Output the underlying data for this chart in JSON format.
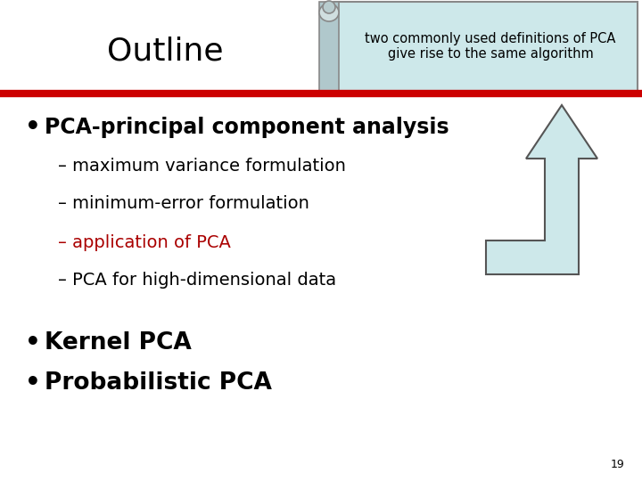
{
  "bg_color": "#ffffff",
  "title_text": "Outline",
  "title_color": "#000000",
  "title_fontsize": 26,
  "header_box_text": "two commonly used definitions of PCA\ngive rise to the same algorithm",
  "header_box_bg": "#cde8ea",
  "header_box_border": "#888888",
  "red_line_color": "#cc0000",
  "bullet1_text": "PCA-principal component analysis",
  "sub1_text": "– maximum variance formulation",
  "sub2_text": "– minimum-error formulation",
  "sub3_text": "– application of PCA",
  "sub4_text": "– PCA for high-dimensional data",
  "bullet2_text": "Kernel PCA",
  "bullet3_text": "Probabilistic PCA",
  "bullet_color": "#000000",
  "sub3_color": "#aa0000",
  "page_num": "19",
  "arrow_color": "#cde8ea",
  "arrow_border": "#555555",
  "scroll_color": "#b0c8cc",
  "scroll_border": "#888888"
}
